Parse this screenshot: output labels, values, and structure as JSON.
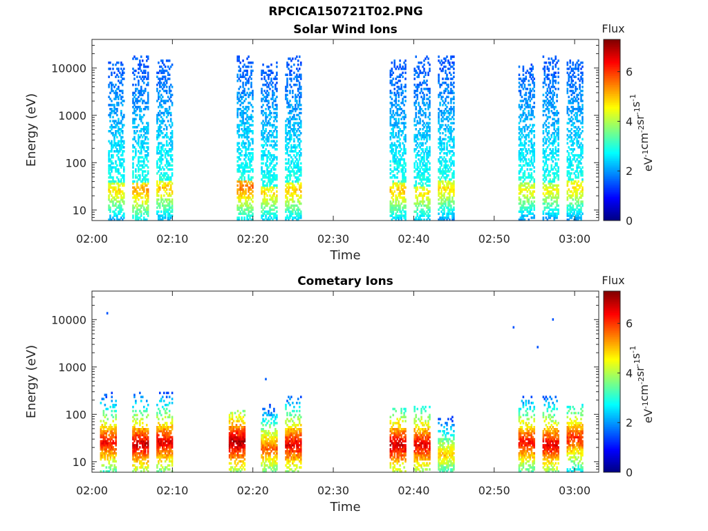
{
  "figure": {
    "title": "RPCICA150721T02.PNG"
  },
  "chart_data": [
    {
      "type": "heatmap",
      "title": "Solar Wind Ions",
      "xlabel": "Time",
      "ylabel": "Energy (eV)",
      "x_scale": "time",
      "y_scale": "log",
      "xlim": [
        "02:00",
        "03:03"
      ],
      "ylim": [
        6,
        40000
      ],
      "xticks": [
        "02:00",
        "02:10",
        "02:20",
        "02:30",
        "02:40",
        "02:50",
        "03:00"
      ],
      "yticks": [
        10,
        100,
        1000,
        10000
      ],
      "ytick_labels": [
        "10",
        "100",
        "1000",
        "10000"
      ],
      "colorbar": {
        "label": "Flux",
        "unit_label": "eV-1cm-2sr-1s-1",
        "range": [
          0,
          7.3
        ],
        "ticks": [
          "0",
          "2",
          "4",
          "6"
        ],
        "colormap": "jet"
      },
      "scan_bursts": [
        {
          "start": "02:02",
          "end": "02:04",
          "emax": 12000,
          "peak_energy": 25,
          "peak_flux": 4.8
        },
        {
          "start": "02:05",
          "end": "02:07",
          "emax": 15000,
          "peak_energy": 25,
          "peak_flux": 5.3
        },
        {
          "start": "02:08",
          "end": "02:10",
          "emax": 13000,
          "peak_energy": 28,
          "peak_flux": 5.0
        },
        {
          "start": "02:18",
          "end": "02:20",
          "emax": 15000,
          "peak_energy": 30,
          "peak_flux": 5.6
        },
        {
          "start": "02:21",
          "end": "02:23",
          "emax": 12000,
          "peak_energy": 22,
          "peak_flux": 4.8
        },
        {
          "start": "02:24",
          "end": "02:26",
          "emax": 15000,
          "peak_energy": 25,
          "peak_flux": 5.0
        },
        {
          "start": "02:37",
          "end": "02:39",
          "emax": 13000,
          "peak_energy": 25,
          "peak_flux": 5.0
        },
        {
          "start": "02:40",
          "end": "02:42",
          "emax": 15000,
          "peak_energy": 22,
          "peak_flux": 4.8
        },
        {
          "start": "02:43",
          "end": "02:45",
          "emax": 16000,
          "peak_energy": 28,
          "peak_flux": 4.8
        },
        {
          "start": "02:53",
          "end": "02:55",
          "emax": 11000,
          "peak_energy": 25,
          "peak_flux": 4.6
        },
        {
          "start": "02:56",
          "end": "02:58",
          "emax": 15000,
          "peak_energy": 25,
          "peak_flux": 4.6
        },
        {
          "start": "02:59",
          "end": "03:01",
          "emax": 13000,
          "peak_energy": 28,
          "peak_flux": 4.8
        }
      ]
    },
    {
      "type": "heatmap",
      "title": "Cometary Ions",
      "xlabel": "Time",
      "ylabel": "Energy (eV)",
      "x_scale": "time",
      "y_scale": "log",
      "xlim": [
        "02:00",
        "03:03"
      ],
      "ylim": [
        6,
        40000
      ],
      "xticks": [
        "02:00",
        "02:10",
        "02:20",
        "02:30",
        "02:40",
        "02:50",
        "03:00"
      ],
      "yticks": [
        10,
        100,
        1000,
        10000
      ],
      "ytick_labels": [
        "10",
        "100",
        "1000",
        "10000"
      ],
      "colorbar": {
        "label": "Flux",
        "unit_label": "eV-1cm-2sr-1s-1",
        "range": [
          0,
          7.3
        ],
        "ticks": [
          "0",
          "2",
          "4",
          "6"
        ],
        "colormap": "jet"
      },
      "scan_bursts": [
        {
          "start": "02:01",
          "end": "02:03",
          "emax": 280,
          "peak_energy": 25,
          "peak_flux": 6.4
        },
        {
          "start": "02:05",
          "end": "02:07",
          "emax": 400,
          "peak_energy": 22,
          "peak_flux": 6.8
        },
        {
          "start": "02:08",
          "end": "02:10",
          "emax": 250,
          "peak_energy": 25,
          "peak_flux": 6.6
        },
        {
          "start": "02:17",
          "end": "02:19",
          "emax": 110,
          "peak_energy": 25,
          "peak_flux": 7.0
        },
        {
          "start": "02:21",
          "end": "02:23",
          "emax": 200,
          "peak_energy": 18,
          "peak_flux": 5.8
        },
        {
          "start": "02:24",
          "end": "02:26",
          "emax": 200,
          "peak_energy": 22,
          "peak_flux": 6.6
        },
        {
          "start": "02:37",
          "end": "02:39",
          "emax": 120,
          "peak_energy": 22,
          "peak_flux": 6.8
        },
        {
          "start": "02:40",
          "end": "02:42",
          "emax": 130,
          "peak_energy": 22,
          "peak_flux": 6.6
        },
        {
          "start": "02:43",
          "end": "02:45",
          "emax": 130,
          "peak_energy": 14,
          "peak_flux": 5.0
        },
        {
          "start": "02:53",
          "end": "02:55",
          "emax": 200,
          "peak_energy": 25,
          "peak_flux": 6.4
        },
        {
          "start": "02:56",
          "end": "02:58",
          "emax": 200,
          "peak_energy": 22,
          "peak_flux": 6.6
        },
        {
          "start": "02:59",
          "end": "03:01",
          "emax": 150,
          "peak_energy": 30,
          "peak_flux": 6.2
        }
      ],
      "isolated_points": [
        {
          "time": "02:01.8",
          "energy": 13500,
          "flux": 1.5
        },
        {
          "time": "02:52.3",
          "energy": 6800,
          "flux": 1.5
        },
        {
          "time": "02:55.3",
          "energy": 2600,
          "flux": 1.5
        },
        {
          "time": "02:57.2",
          "energy": 10000,
          "flux": 1.5
        },
        {
          "time": "02:21.5",
          "energy": 550,
          "flux": 1.6
        }
      ]
    }
  ]
}
